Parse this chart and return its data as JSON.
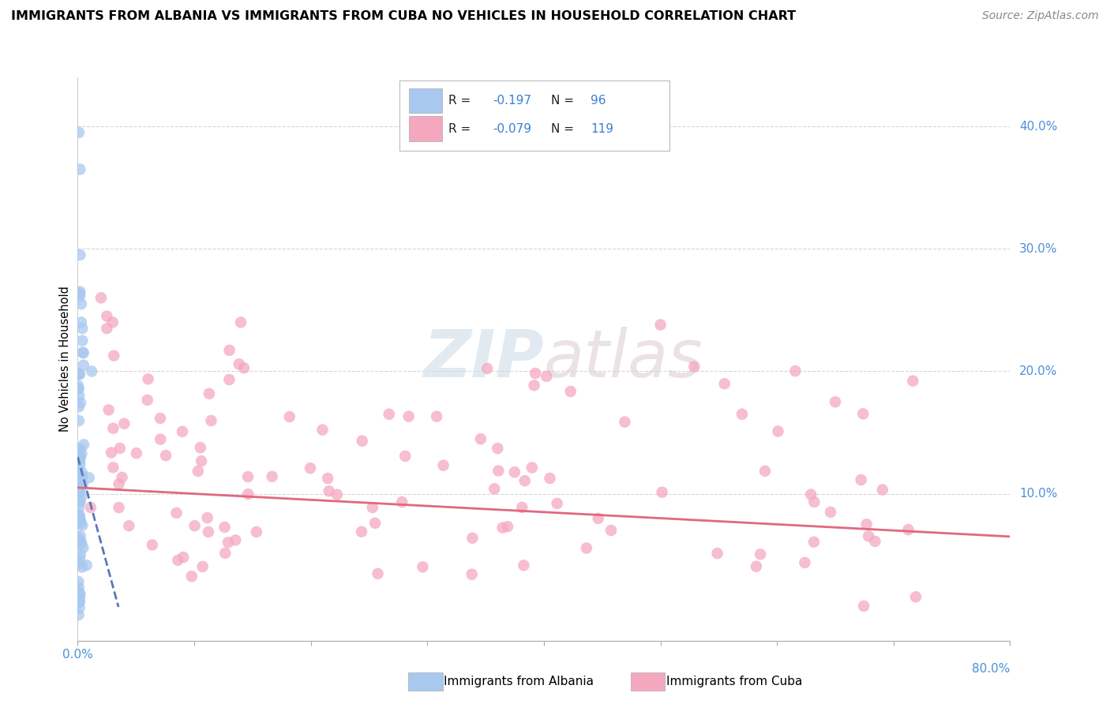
{
  "title": "IMMIGRANTS FROM ALBANIA VS IMMIGRANTS FROM CUBA NO VEHICLES IN HOUSEHOLD CORRELATION CHART",
  "source": "Source: ZipAtlas.com",
  "ylabel": "No Vehicles in Household",
  "y_tick_vals": [
    0.1,
    0.2,
    0.3,
    0.4
  ],
  "x_range": [
    0.0,
    0.8
  ],
  "y_range": [
    -0.02,
    0.44
  ],
  "legend_label1": "Immigrants from Albania",
  "legend_label2": "Immigrants from Cuba",
  "r1": -0.197,
  "n1": 96,
  "r2": -0.079,
  "n2": 119,
  "color_albania": "#a8c8f0",
  "color_cuba": "#f4a8c0",
  "trendline_color_albania": "#5878b8",
  "trendline_color_cuba": "#e06880",
  "watermark_zip": "ZIP",
  "watermark_atlas": "atlas"
}
